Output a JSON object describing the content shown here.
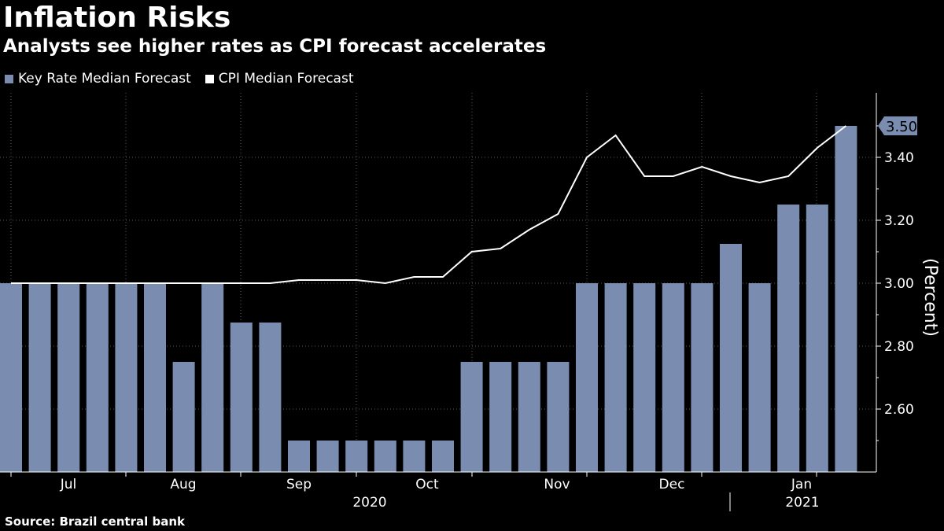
{
  "title": "Inflation Risks",
  "subtitle": "Analysts see higher rates as CPI forecast accelerates",
  "source": "Source:  Brazil central bank",
  "colors": {
    "bar": "#7a8db0",
    "line": "#ffffff",
    "grid": "#5a5a5a",
    "background": "#000000"
  },
  "chart_data": {
    "type": "bar",
    "ylabel": "(Percent)",
    "ylim": [
      2.4,
      3.6
    ],
    "yticks": [
      2.6,
      2.8,
      3.0,
      3.2,
      3.4
    ],
    "xticks": [
      "Jul",
      "Aug",
      "Sep",
      "Oct",
      "Nov",
      "Dec",
      "Jan"
    ],
    "year_labels": [
      "2020",
      "2021"
    ],
    "last_value_label": "3.50",
    "series": [
      {
        "name": "Key Rate Median Forecast",
        "kind": "bar",
        "values": [
          3.0,
          3.0,
          3.0,
          3.0,
          3.0,
          3.0,
          2.75,
          3.0,
          2.875,
          2.875,
          2.5,
          2.5,
          2.5,
          2.5,
          2.5,
          2.5,
          2.75,
          2.75,
          2.75,
          2.75,
          3.0,
          3.0,
          3.0,
          3.0,
          3.0,
          3.125,
          3.0,
          3.25,
          3.25,
          3.5
        ]
      },
      {
        "name": "CPI Median Forecast",
        "kind": "line",
        "values": [
          3.0,
          3.0,
          3.0,
          3.0,
          3.0,
          3.0,
          3.0,
          3.0,
          3.0,
          3.0,
          3.01,
          3.01,
          3.01,
          3.0,
          3.02,
          3.02,
          3.1,
          3.11,
          3.17,
          3.22,
          3.4,
          3.47,
          3.34,
          3.34,
          3.37,
          3.34,
          3.32,
          3.34,
          3.43,
          3.5
        ]
      }
    ]
  }
}
